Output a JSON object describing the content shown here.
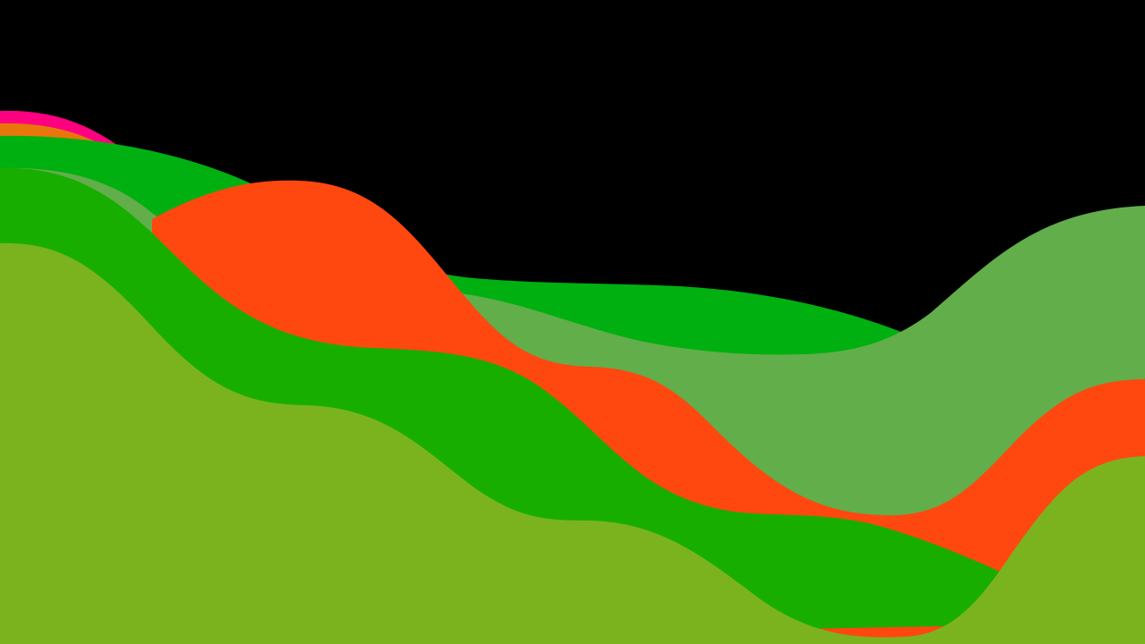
{
  "background": "#000000",
  "layers": [
    {
      "name": "wave-pink",
      "color": "#FF0080"
    },
    {
      "name": "wave-orange",
      "color": "#E8760A"
    },
    {
      "name": "wave-bright-green",
      "color": "#00B010"
    },
    {
      "name": "wave-light-green",
      "color": "#62AE4A"
    },
    {
      "name": "wave-red-orange",
      "color": "#FF4810"
    },
    {
      "name": "wave-green",
      "color": "#18AE00"
    },
    {
      "name": "wave-olive",
      "color": "#7BB31F"
    }
  ]
}
